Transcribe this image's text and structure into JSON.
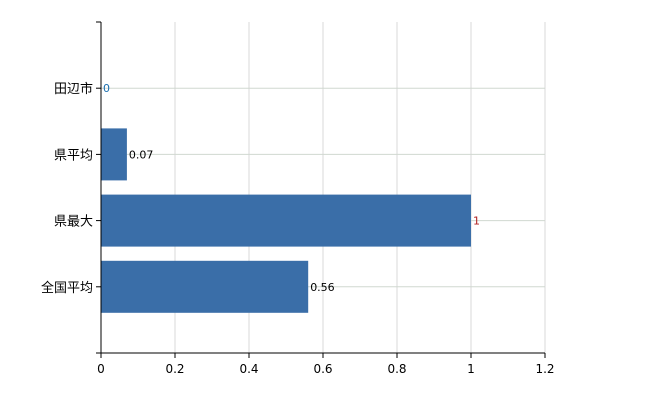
{
  "chart_data": {
    "type": "bar",
    "orientation": "horizontal",
    "categories": [
      "田辺市",
      "県平均",
      "県最大",
      "全国平均"
    ],
    "values": [
      0,
      0.07,
      1,
      0.56
    ],
    "data_labels": [
      "0",
      "0.07",
      "1",
      "0.56"
    ],
    "label_colors": [
      "#1a6fb0",
      "#000000",
      "#b02020",
      "#000000"
    ],
    "xlim": [
      0,
      1.2
    ],
    "xticks": [
      0,
      0.2,
      0.4,
      0.6,
      0.8,
      1,
      1.2
    ],
    "xtick_labels": [
      "0",
      "0.2",
      "0.4",
      "0.6",
      "0.8",
      "1",
      "1.2"
    ],
    "grid": true,
    "bar_color": "#3a6ea8",
    "title": "",
    "xlabel": "",
    "ylabel": ""
  }
}
